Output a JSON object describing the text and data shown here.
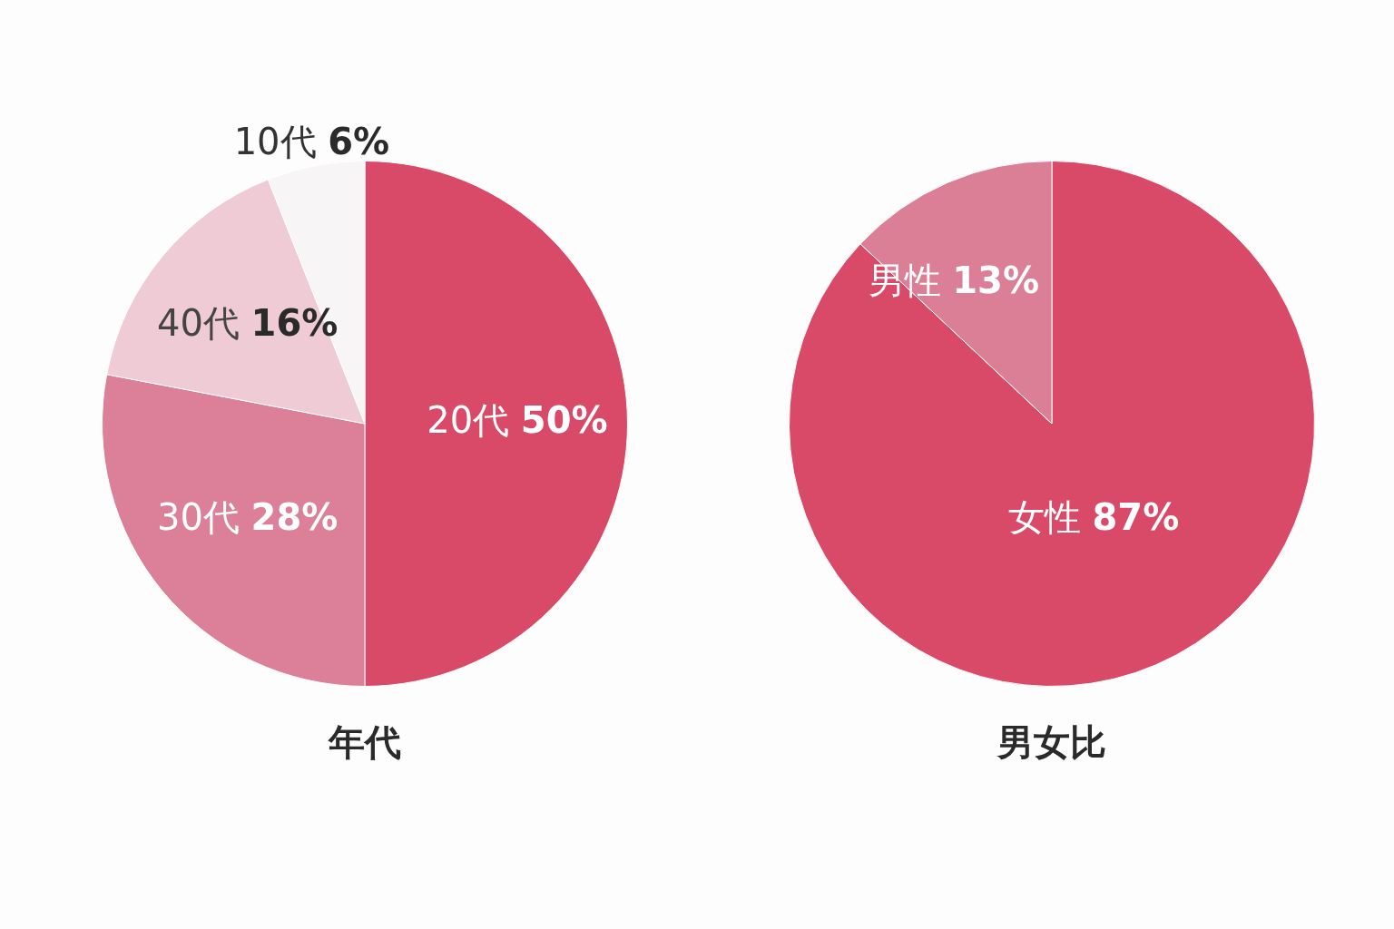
{
  "chart_data": [
    {
      "type": "pie",
      "title": "年代",
      "categories": [
        "20代",
        "30代",
        "40代",
        "10代"
      ],
      "values": [
        50,
        28,
        16,
        6
      ],
      "colors": [
        "#d94a68",
        "#db8098",
        "#efcbd5",
        "#f7f5f5"
      ],
      "value_labels": [
        "50%",
        "28%",
        "16%",
        "6%"
      ],
      "legend": false
    },
    {
      "type": "pie",
      "title": "男女比",
      "categories": [
        "女性",
        "男性"
      ],
      "values": [
        87,
        13
      ],
      "colors": [
        "#d94a68",
        "#da7f96"
      ],
      "value_labels": [
        "87%",
        "13%"
      ],
      "legend": false
    }
  ]
}
